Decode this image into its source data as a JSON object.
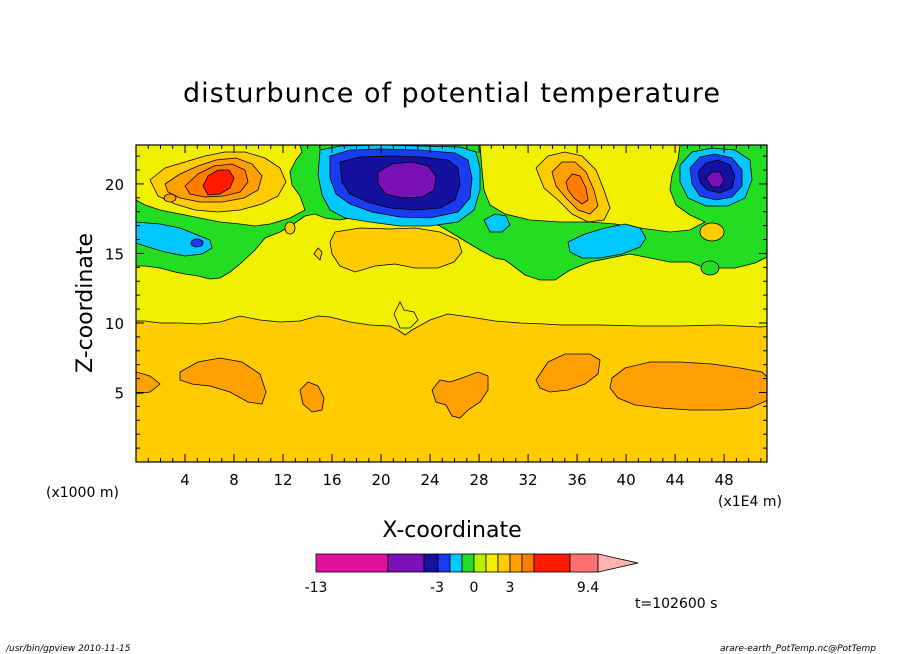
{
  "chart_data": {
    "type": "heatmap",
    "title": "disturbunce of potential temperature",
    "xlabel": "X-coordinate",
    "ylabel": "Z-coordinate",
    "x_unit_left": "(x1000 m)",
    "x_unit_right": "(x1E4 m)",
    "xticks": [
      4,
      8,
      12,
      16,
      20,
      24,
      28,
      32,
      36,
      40,
      44,
      48
    ],
    "yticks": [
      5,
      10,
      15,
      20
    ],
    "xlim": [
      0,
      51.5
    ],
    "ylim": [
      0,
      22.8
    ],
    "colorbar": {
      "tick_labels": [
        "-13",
        "-3",
        "0",
        "3",
        "9.4"
      ],
      "colors": [
        "#e0119f",
        "#7a10b8",
        "#1410a0",
        "#1a3cf0",
        "#00c8ff",
        "#22dd22",
        "#b8f000",
        "#f0f000",
        "#ffcc00",
        "#ffa000",
        "#ff7e00",
        "#ff1a00",
        "#ff7070",
        "#ffb3b3"
      ]
    },
    "time_label": "t=102600 s",
    "approx_field_features": [
      {
        "x": 21.5,
        "z": 20.5,
        "value": -10,
        "kind": "min"
      },
      {
        "x": 46.5,
        "z": 20.3,
        "value": -9,
        "kind": "min"
      },
      {
        "x": 2.5,
        "z": 16.5,
        "value": -3,
        "kind": "min"
      },
      {
        "x": 35.5,
        "z": 16.2,
        "value": -3,
        "kind": "min"
      },
      {
        "x": 7,
        "z": 20.5,
        "value": 9,
        "kind": "max"
      },
      {
        "x": 35.5,
        "z": 19.5,
        "value": 5,
        "kind": "max"
      },
      {
        "x": 22,
        "z": 16.5,
        "value": 2,
        "kind": "max"
      },
      {
        "x": 7.5,
        "z": 6.2,
        "value": 2,
        "kind": "max"
      },
      {
        "x": 44,
        "z": 6.5,
        "value": 2,
        "kind": "max"
      }
    ]
  },
  "footer": {
    "left": "/usr/bin/gpview  2010-11-15",
    "right": "arare-earth_PotTemp.nc@PotTemp"
  }
}
